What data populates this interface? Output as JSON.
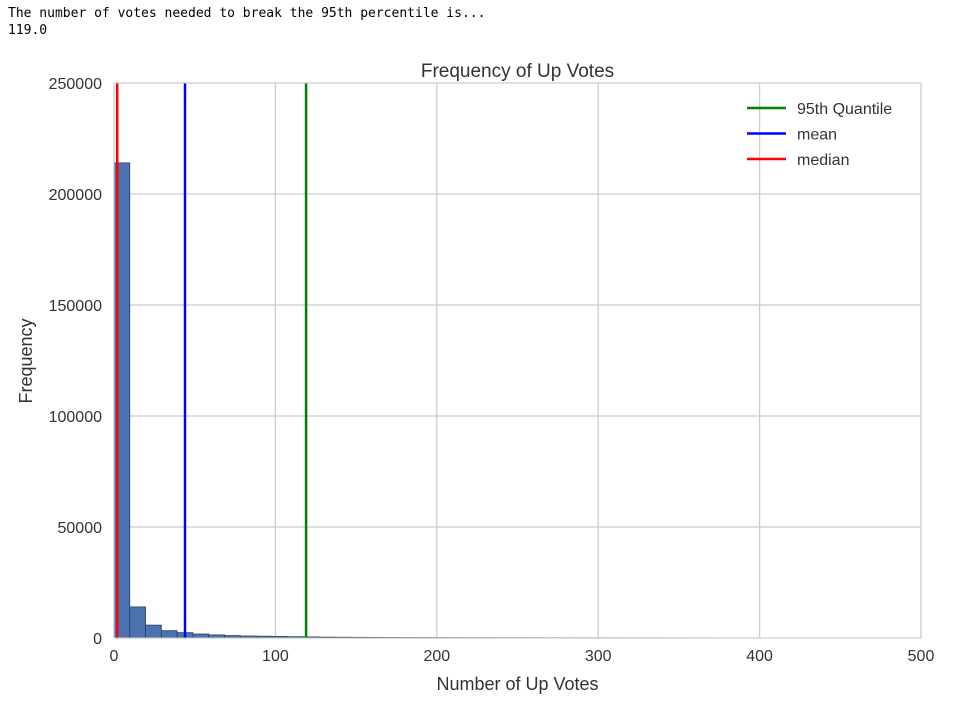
{
  "console": {
    "line1": "The number of votes needed to break the 95th percentile is...",
    "line2": "119.0"
  },
  "chart_data": {
    "type": "bar",
    "title": "Frequency of Up Votes",
    "xlabel": "Number of Up Votes",
    "ylabel": "Frequency",
    "xlim": [
      0,
      500
    ],
    "ylim": [
      0,
      250000
    ],
    "xticks": [
      0,
      100,
      200,
      300,
      400,
      500
    ],
    "yticks": [
      0,
      50000,
      100000,
      150000,
      200000,
      250000
    ],
    "grid": true,
    "legend_position": "top-right",
    "bar_color": "#4c72b0",
    "bin_edges": [
      0,
      9.78,
      19.56,
      29.34,
      39.12,
      48.9,
      58.68,
      68.46,
      78.24,
      88.02,
      97.8,
      107.58,
      117.36,
      127.14,
      136.92,
      146.7,
      156.48,
      166.26,
      176.04,
      185.82,
      195.6,
      205.38,
      215.16,
      224.94,
      234.72,
      244.5,
      254.28,
      264.06,
      273.84,
      283.62,
      293.4,
      303.18,
      312.96,
      322.74,
      332.52,
      342.3,
      352.08,
      361.86,
      371.64,
      381.42,
      391.2,
      400.98,
      410.76,
      420.54,
      430.32,
      440.1,
      449.88,
      459.66,
      469.44,
      479.22,
      489
    ],
    "counts": [
      214000,
      14000,
      5800,
      3300,
      2400,
      1800,
      1400,
      1100,
      900,
      800,
      700,
      600,
      500,
      400,
      350,
      300,
      270,
      240,
      220,
      200,
      180,
      160,
      150,
      140,
      130,
      120,
      110,
      100,
      95,
      90,
      85,
      80,
      75,
      70,
      65,
      60,
      55,
      50,
      45,
      40,
      38,
      35,
      32,
      30,
      28,
      26,
      24,
      22,
      20,
      18
    ],
    "vlines": [
      {
        "name": "95th Quantile",
        "x": 119,
        "color": "#008000"
      },
      {
        "name": "mean",
        "x": 44,
        "color": "#0000ff"
      },
      {
        "name": "median",
        "x": 2,
        "color": "#ff0000"
      }
    ]
  }
}
